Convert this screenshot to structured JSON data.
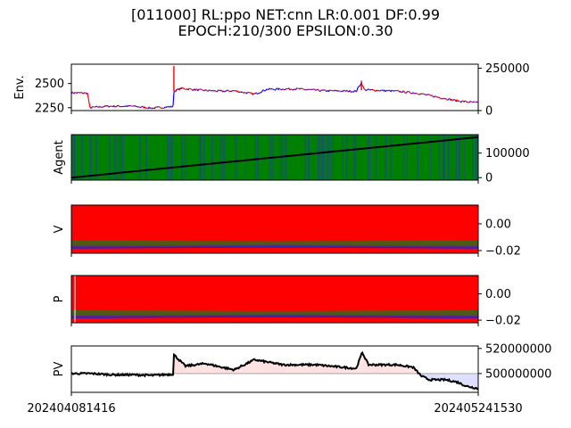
{
  "title_line1": "[011000] RL:ppo NET:cnn LR:0.001 DF:0.99",
  "title_line2": "EPOCH:210/300 EPSILON:0.30",
  "x_tick_start": "202404081416",
  "x_tick_end": "202405241530",
  "colors": {
    "price_up": "#ff0000",
    "price_down": "#0000ff",
    "agent_hold": "#008000",
    "agent_other": "#1a4d80",
    "red_fill": "#ff0000",
    "pv_pos_fill": "#ffdede",
    "pv_neg_fill": "#dcdcff",
    "line": "#000000"
  },
  "chart_data": [
    {
      "type": "line",
      "ylabel": "Env.",
      "yticks_left": [
        "2500",
        "2250"
      ],
      "yticks_right": [
        "250000",
        "0"
      ],
      "ylim": [
        2220,
        2700
      ],
      "series": [
        {
          "x": [
            0,
            0.04,
            0.045,
            0.09,
            0.15,
            0.2,
            0.25,
            0.252,
            0.27,
            0.32,
            0.37,
            0.4,
            0.45,
            0.48,
            0.55,
            0.62,
            0.7,
            0.713,
            0.72,
            0.8,
            0.85,
            0.9,
            0.95,
            1.0
          ],
          "y": [
            2405,
            2400,
            2250,
            2265,
            2265,
            2245,
            2262,
            2420,
            2450,
            2430,
            2420,
            2425,
            2390,
            2440,
            2445,
            2425,
            2420,
            2510,
            2435,
            2420,
            2400,
            2360,
            2320,
            2300
          ]
        }
      ]
    },
    {
      "type": "heatmap",
      "ylabel": "Agent",
      "yticks_right": [
        "100000",
        "0"
      ],
      "cumulative_line": {
        "start": 0,
        "end": 165000,
        "ylim": [
          -10000,
          175000
        ]
      }
    },
    {
      "type": "area",
      "ylabel": "V",
      "yticks_right": [
        "0.00",
        "−0.02"
      ],
      "ylim": [
        -0.022,
        0.014
      ],
      "series": [
        {
          "name": "top",
          "values": [
            -0.0125,
            -0.013,
            -0.0125
          ]
        },
        {
          "name": "mid",
          "values": [
            -0.017,
            -0.0163,
            -0.017
          ]
        },
        {
          "name": "low",
          "values": [
            -0.0185,
            -0.0177,
            -0.0185
          ]
        }
      ]
    },
    {
      "type": "area",
      "ylabel": "P",
      "yticks_right": [
        "0.00",
        "−0.02"
      ],
      "ylim": [
        -0.022,
        0.014
      ],
      "series": [
        {
          "name": "top",
          "values": [
            -0.0125,
            -0.013,
            -0.0125
          ]
        },
        {
          "name": "mid",
          "values": [
            -0.017,
            -0.0163,
            -0.017
          ]
        },
        {
          "name": "low",
          "values": [
            -0.0185,
            -0.0177,
            -0.0185
          ]
        }
      ]
    },
    {
      "type": "line",
      "ylabel": "PV",
      "yticks_right": [
        "520000000",
        "500000000"
      ],
      "ylim": [
        485000000,
        522000000
      ],
      "baseline": 500000000,
      "series": [
        {
          "x": [
            0,
            0.05,
            0.1,
            0.15,
            0.2,
            0.25,
            0.252,
            0.28,
            0.33,
            0.37,
            0.4,
            0.45,
            0.52,
            0.6,
            0.7,
            0.715,
            0.73,
            0.8,
            0.84,
            0.86,
            0.88,
            0.92,
            0.95,
            0.97,
            1.0
          ],
          "y": [
            500000000,
            500000000,
            499000000,
            499000000,
            498500000,
            499500000,
            515000000,
            506000000,
            508000000,
            505000000,
            503000000,
            511000000,
            507000000,
            507000000,
            504000000,
            517000000,
            507000000,
            507000000,
            505000000,
            498000000,
            495000000,
            495000000,
            493000000,
            490000000,
            488000000
          ]
        }
      ]
    }
  ]
}
